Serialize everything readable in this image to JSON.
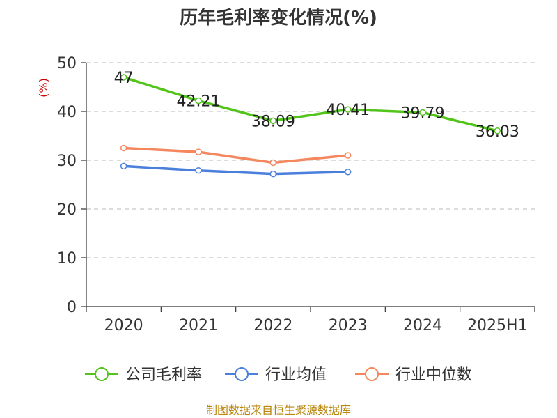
{
  "chart_data": {
    "type": "line",
    "title": "历年毛利率变化情况(%)",
    "ylabel": "(%)",
    "xlabel": "",
    "categories": [
      "2020",
      "2021",
      "2022",
      "2023",
      "2024",
      "2025H1"
    ],
    "ylim": [
      0,
      50
    ],
    "yticks": [
      0,
      10,
      20,
      30,
      40,
      50
    ],
    "grid": true,
    "legend_position": "bottom",
    "series": [
      {
        "name": "公司毛利率",
        "color": "#52c41a",
        "values": [
          47,
          42.21,
          38.09,
          40.41,
          39.79,
          36.03
        ],
        "labels": [
          "47",
          "42.21",
          "38.09",
          "40.41",
          "39.79",
          "36.03"
        ]
      },
      {
        "name": "行业均值",
        "color": "#4a7fdc",
        "values": [
          28.8,
          27.9,
          27.2,
          27.6,
          null,
          null
        ]
      },
      {
        "name": "行业中位数",
        "color": "#f5875f",
        "values": [
          32.5,
          31.7,
          29.5,
          31.0,
          null,
          null
        ]
      }
    ]
  },
  "source_text": "制图数据来自恒生聚源数据库"
}
